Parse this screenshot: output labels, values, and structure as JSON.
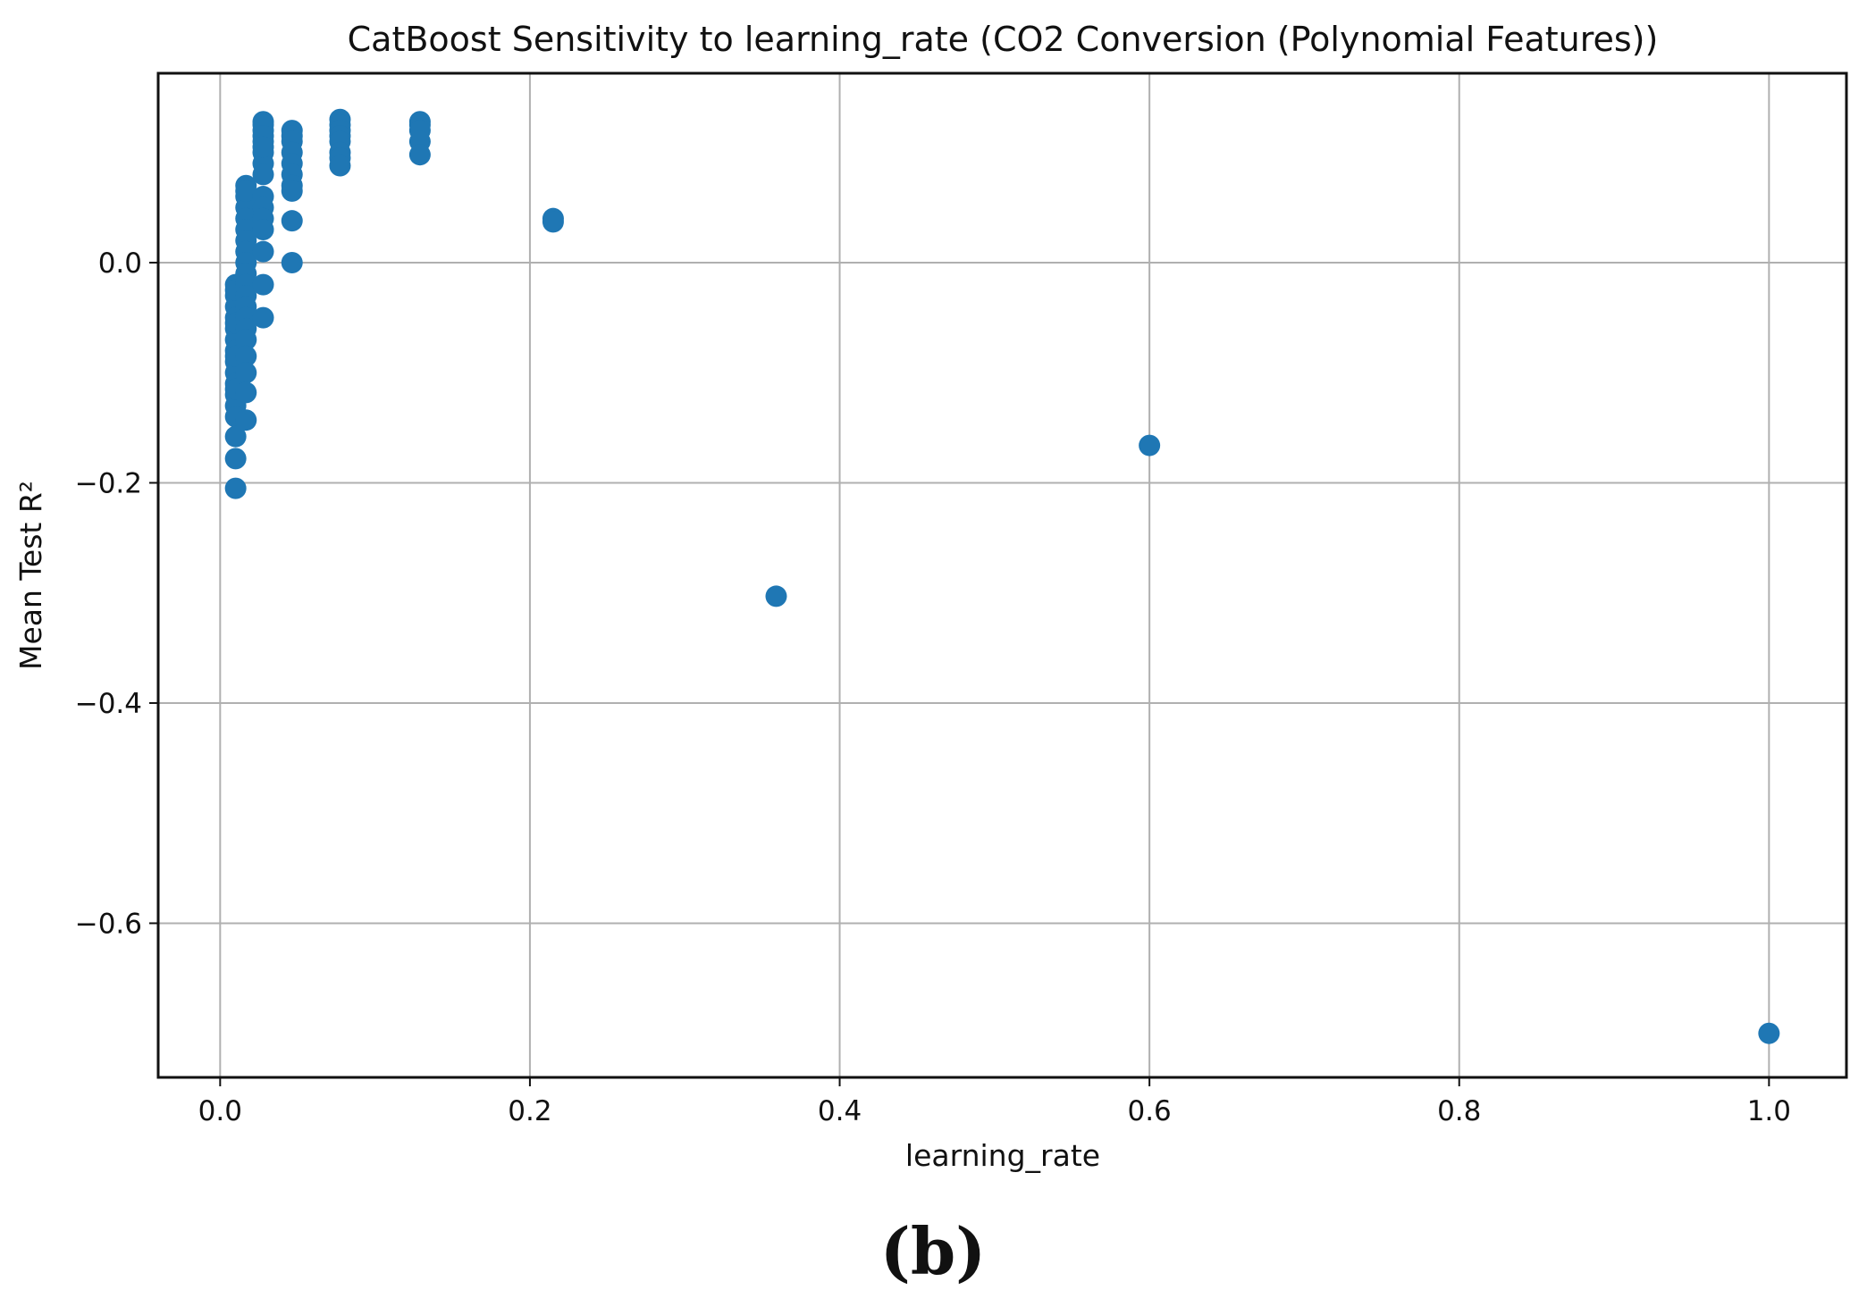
{
  "chart_data": {
    "type": "scatter",
    "title": "CatBoost Sensitivity to learning_rate (CO2 Conversion (Polynomial Features))",
    "xlabel": "learning_rate",
    "ylabel": "Mean Test R²",
    "xlim": [
      -0.04,
      1.05
    ],
    "ylim": [
      -0.74,
      0.172
    ],
    "xticks": [
      0.0,
      0.2,
      0.4,
      0.6,
      0.8,
      1.0
    ],
    "xtick_labels": [
      "0.0",
      "0.2",
      "0.4",
      "0.6",
      "0.8",
      "1.0"
    ],
    "yticks": [
      0.0,
      -0.2,
      -0.4,
      -0.6
    ],
    "ytick_labels": [
      "0.0",
      "−0.2",
      "−0.4",
      "−0.6"
    ],
    "grid": true,
    "marker_color": "#1f77b4",
    "series": [
      {
        "x": [
          0.01,
          0.01,
          0.01,
          0.01,
          0.01,
          0.01,
          0.01,
          0.01,
          0.01,
          0.01,
          0.01,
          0.01,
          0.01,
          0.01,
          0.01,
          0.01,
          0.01,
          0.01,
          0.01,
          0.01,
          0.0167,
          0.0167,
          0.0167,
          0.0167,
          0.0167,
          0.0167,
          0.0167,
          0.0167,
          0.0167,
          0.0167,
          0.0167,
          0.0167,
          0.0167,
          0.0167,
          0.0167,
          0.0167,
          0.0167,
          0.0167,
          0.0167,
          0.0167,
          0.0278,
          0.0278,
          0.0278,
          0.0278,
          0.0278,
          0.0278,
          0.0278,
          0.0278,
          0.0278,
          0.0278,
          0.0278,
          0.0278,
          0.0278,
          0.0278,
          0.0278,
          0.0278,
          0.0464,
          0.0464,
          0.0464,
          0.0464,
          0.0464,
          0.0464,
          0.0464,
          0.0464,
          0.0464,
          0.0464,
          0.0774,
          0.0774,
          0.0774,
          0.0774,
          0.0774,
          0.0774,
          0.0774,
          0.0774,
          0.129,
          0.129,
          0.129,
          0.129,
          0.129,
          0.215,
          0.215,
          0.359,
          0.6,
          1.0
        ],
        "y": [
          -0.02,
          -0.03,
          -0.04,
          -0.05,
          -0.06,
          -0.07,
          -0.08,
          -0.09,
          -0.1,
          -0.11,
          -0.12,
          -0.13,
          -0.14,
          -0.158,
          -0.178,
          -0.205,
          -0.025,
          -0.055,
          -0.085,
          -0.115,
          0.07,
          0.06,
          0.05,
          0.04,
          0.03,
          0.02,
          0.01,
          0.0,
          -0.01,
          -0.02,
          -0.03,
          -0.04,
          -0.05,
          -0.06,
          -0.07,
          -0.085,
          -0.1,
          -0.118,
          -0.143,
          0.065,
          0.128,
          0.12,
          0.11,
          0.1,
          0.09,
          0.08,
          0.06,
          0.05,
          0.04,
          0.03,
          0.01,
          -0.02,
          -0.05,
          0.125,
          0.115,
          0.105,
          0.12,
          0.115,
          0.11,
          0.1,
          0.09,
          0.08,
          0.07,
          0.065,
          0.038,
          0.0,
          0.13,
          0.125,
          0.12,
          0.115,
          0.11,
          0.1,
          0.095,
          0.088,
          0.128,
          0.125,
          0.12,
          0.11,
          0.098,
          0.04,
          0.037,
          -0.303,
          -0.166,
          -0.7
        ]
      }
    ]
  },
  "caption": "(b)"
}
